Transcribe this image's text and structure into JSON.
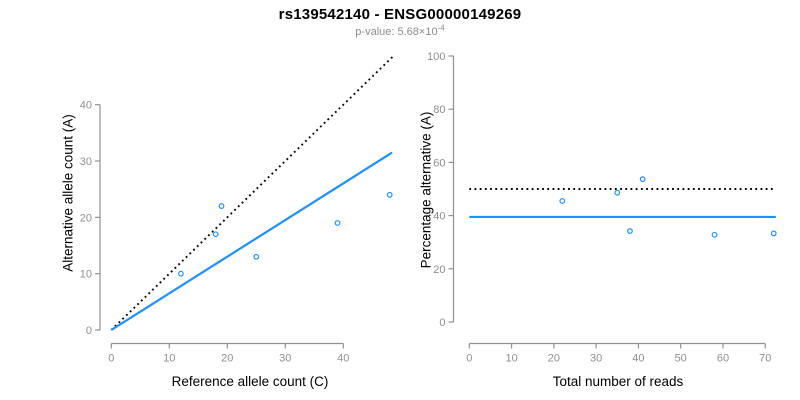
{
  "header": {
    "title": "rs139542140 - ENSG00000149269",
    "p_value_prefix": "p-value: 5.68×10",
    "p_value_exponent": "-4"
  },
  "colors": {
    "accent_blue": "#1E90FF",
    "line_black": "#000000",
    "axis_gray": "#919191",
    "tick_label_gray": "#8f8f8f",
    "subtitle_gray": "#8c8c8c"
  },
  "chart_data": [
    {
      "type": "scatter",
      "panel": "left",
      "xlabel": "Reference allele count (C)",
      "ylabel": "Alternative allele count (A)",
      "xticks": [
        0,
        10,
        20,
        30,
        40
      ],
      "yticks": [
        0,
        10,
        20,
        30,
        40
      ],
      "xlim": [
        0,
        48.5
      ],
      "ylim": [
        0,
        48.5
      ],
      "grid": false,
      "legend": "none",
      "points": [
        [
          12,
          10
        ],
        [
          18,
          17
        ],
        [
          19,
          22
        ],
        [
          25,
          13
        ],
        [
          39,
          19
        ],
        [
          48,
          24
        ]
      ],
      "lines": [
        {
          "name": "identity-line",
          "style": "dotted",
          "color": "#000000",
          "x1": 0,
          "y1": 0,
          "x2": 48.5,
          "y2": 48.5
        },
        {
          "name": "fit-line",
          "style": "solid",
          "color": "#1E90FF",
          "x1": 0,
          "y1": 0,
          "x2": 48.4,
          "y2": 31.5
        }
      ]
    },
    {
      "type": "scatter",
      "panel": "right",
      "xlabel": "Total number of reads",
      "ylabel": "Percentage alternative (A)",
      "xticks": [
        0,
        10,
        20,
        30,
        40,
        50,
        60,
        70
      ],
      "yticks": [
        0,
        20,
        40,
        60,
        80,
        100
      ],
      "xlim": [
        0,
        72.5
      ],
      "ylim": [
        0,
        100
      ],
      "grid": false,
      "legend": "none",
      "points": [
        [
          22,
          45.5
        ],
        [
          35,
          48.6
        ],
        [
          38,
          34.2
        ],
        [
          41,
          53.7
        ],
        [
          58,
          32.8
        ],
        [
          72,
          33.3
        ]
      ],
      "lines": [
        {
          "name": "expected-50pct-line",
          "style": "dotted",
          "color": "#000000",
          "x1": 0,
          "y1": 50,
          "x2": 72.5,
          "y2": 50
        },
        {
          "name": "mean-percentage-line",
          "style": "solid",
          "color": "#1E90FF",
          "x1": 0,
          "y1": 39.5,
          "x2": 72.5,
          "y2": 39.5
        }
      ]
    }
  ]
}
